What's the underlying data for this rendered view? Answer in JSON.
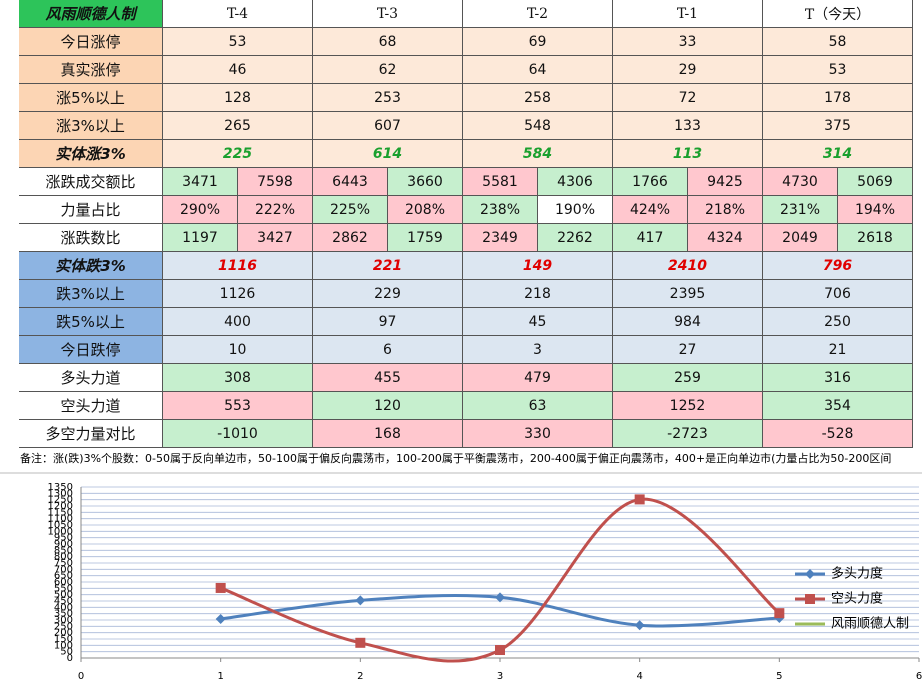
{
  "table": {
    "corner": "风雨顺德人制",
    "columns": [
      "T-4",
      "T-3",
      "T-2",
      "T-1",
      "T（今天）"
    ],
    "rows": [
      {
        "label": "今日涨停",
        "values": [
          "53",
          "68",
          "69",
          "33",
          "58"
        ]
      },
      {
        "label": "真实涨停",
        "values": [
          "46",
          "62",
          "64",
          "29",
          "53"
        ]
      },
      {
        "label": "涨5%以上",
        "values": [
          "128",
          "253",
          "258",
          "72",
          "178"
        ]
      },
      {
        "label": "涨3%以上",
        "values": [
          "265",
          "607",
          "548",
          "133",
          "375"
        ]
      },
      {
        "label": "实体涨3%",
        "values": [
          "225",
          "614",
          "584",
          "113",
          "314"
        ]
      },
      {
        "label": "涨跌成交额比",
        "values": [
          [
            "3471",
            "7598"
          ],
          [
            "6443",
            "3660"
          ],
          [
            "5581",
            "4306"
          ],
          [
            "1766",
            "9425"
          ],
          [
            "4730",
            "5069"
          ]
        ]
      },
      {
        "label": "力量占比",
        "values": [
          [
            "290%",
            "222%"
          ],
          [
            "225%",
            "208%"
          ],
          [
            "238%",
            "190%"
          ],
          [
            "424%",
            "218%"
          ],
          [
            "231%",
            "194%"
          ]
        ]
      },
      {
        "label": "涨跌数比",
        "values": [
          [
            "1197",
            "3427"
          ],
          [
            "2862",
            "1759"
          ],
          [
            "2349",
            "2262"
          ],
          [
            "417",
            "4324"
          ],
          [
            "2049",
            "2618"
          ]
        ]
      },
      {
        "label": "实体跌3%",
        "values": [
          "1116",
          "221",
          "149",
          "2410",
          "796"
        ]
      },
      {
        "label": "跌3%以上",
        "values": [
          "1126",
          "229",
          "218",
          "2395",
          "706"
        ]
      },
      {
        "label": "跌5%以上",
        "values": [
          "400",
          "97",
          "45",
          "984",
          "250"
        ]
      },
      {
        "label": "今日跌停",
        "values": [
          "10",
          "6",
          "3",
          "27",
          "21"
        ]
      },
      {
        "label": "多头力道",
        "values": [
          "308",
          "455",
          "479",
          "259",
          "316"
        ]
      },
      {
        "label": "空头力道",
        "values": [
          "553",
          "120",
          "63",
          "1252",
          "354"
        ]
      },
      {
        "label": "多空力量对比",
        "values": [
          "-1010",
          "168",
          "330",
          "-2723",
          "-528"
        ]
      }
    ],
    "note": "备注：涨(跌)3%个股数：0-50属于反向单边市，50-100属于偏反向震荡市，100-200属于平衡震荡市，200-400属于偏正向震荡市，400+是正向单边市(力量占比为50-200区间"
  },
  "chart_data": {
    "type": "line",
    "x": [
      1,
      2,
      3,
      4,
      5
    ],
    "series": [
      {
        "name": "多头力度",
        "color": "#4f81bd",
        "values": [
          308,
          455,
          479,
          259,
          316
        ]
      },
      {
        "name": "空头力度",
        "color": "#c0504d",
        "values": [
          553,
          120,
          63,
          1252,
          354
        ]
      },
      {
        "name": "风雨顺德人制",
        "color": "#9bbb59",
        "values": [
          null,
          null,
          null,
          null,
          null
        ]
      }
    ],
    "xlim": [
      0,
      6
    ],
    "xticks": [
      0,
      1,
      2,
      3,
      4,
      5,
      6
    ],
    "ylim": [
      0,
      1350
    ],
    "yticks": [
      0,
      50,
      100,
      150,
      200,
      250,
      300,
      350,
      400,
      450,
      500,
      550,
      600,
      650,
      700,
      750,
      800,
      850,
      900,
      950,
      1000,
      1050,
      1100,
      1150,
      1200,
      1250,
      1300,
      1350
    ],
    "grid": true,
    "smooth": true,
    "legend": "right"
  }
}
